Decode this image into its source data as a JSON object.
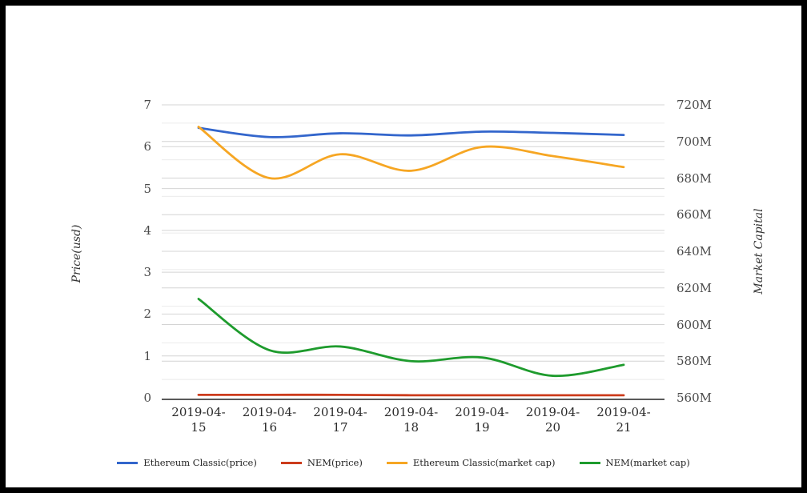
{
  "page": {
    "background": "#ffffff",
    "frame_color": "#000000"
  },
  "chart_data": {
    "type": "line",
    "smooth": true,
    "grid": true,
    "legend_position": "bottom",
    "categories": [
      "2019-04-15",
      "2019-04-16",
      "2019-04-17",
      "2019-04-18",
      "2019-04-19",
      "2019-04-20",
      "2019-04-21"
    ],
    "left_axis": {
      "label": "Price(usd)",
      "min": 0,
      "max": 7,
      "tick_step": 1,
      "tick_labels": [
        "0",
        "1",
        "2",
        "3",
        "4",
        "5",
        "6",
        "7"
      ]
    },
    "right_axis": {
      "label": "Market Capital",
      "min": 560,
      "max": 720,
      "tick_step": 20,
      "minor_step": 10,
      "unit": "M",
      "tick_labels": [
        "560M",
        "580M",
        "600M",
        "620M",
        "640M",
        "660M",
        "680M",
        "700M",
        "720M"
      ]
    },
    "series": [
      {
        "name": "Ethereum Classic(price)",
        "axis": "left",
        "color": "#3366cc",
        "values": [
          6.45,
          6.23,
          6.32,
          6.27,
          6.36,
          6.33,
          6.28
        ]
      },
      {
        "name": "NEM(price)",
        "axis": "left",
        "color": "#cc3b1c",
        "values": [
          0.07,
          0.07,
          0.07,
          0.06,
          0.06,
          0.06,
          0.06
        ]
      },
      {
        "name": "Ethereum Classic(market cap)",
        "axis": "right",
        "color": "#f6a623",
        "values": [
          708,
          680,
          693,
          684,
          697,
          692,
          686
        ]
      },
      {
        "name": "NEM(market cap)",
        "axis": "right",
        "color": "#1e9b2d",
        "values": [
          614,
          586,
          588,
          580,
          582,
          572,
          578
        ]
      }
    ]
  }
}
